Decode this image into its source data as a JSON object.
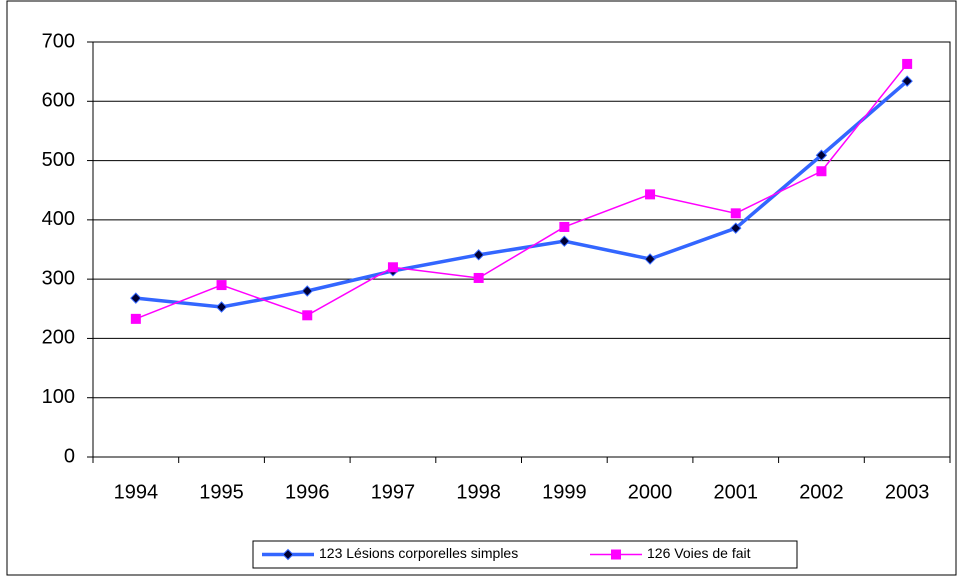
{
  "chart_data": {
    "type": "line",
    "categories": [
      "1994",
      "1995",
      "1996",
      "1997",
      "1998",
      "1999",
      "2000",
      "2001",
      "2002",
      "2003"
    ],
    "series": [
      {
        "name": "123 Lésions corporelles simples",
        "color": "#3366ff",
        "values": [
          268,
          253,
          280,
          314,
          341,
          364,
          334,
          386,
          509,
          634
        ]
      },
      {
        "name": "126 Voies de fait",
        "color": "#ff00ff",
        "values": [
          233,
          290,
          239,
          320,
          302,
          388,
          443,
          411,
          482,
          663
        ]
      }
    ],
    "ylim": [
      0,
      700
    ],
    "yticks": [
      0,
      100,
      200,
      300,
      400,
      500,
      600,
      700
    ],
    "grid": true
  }
}
